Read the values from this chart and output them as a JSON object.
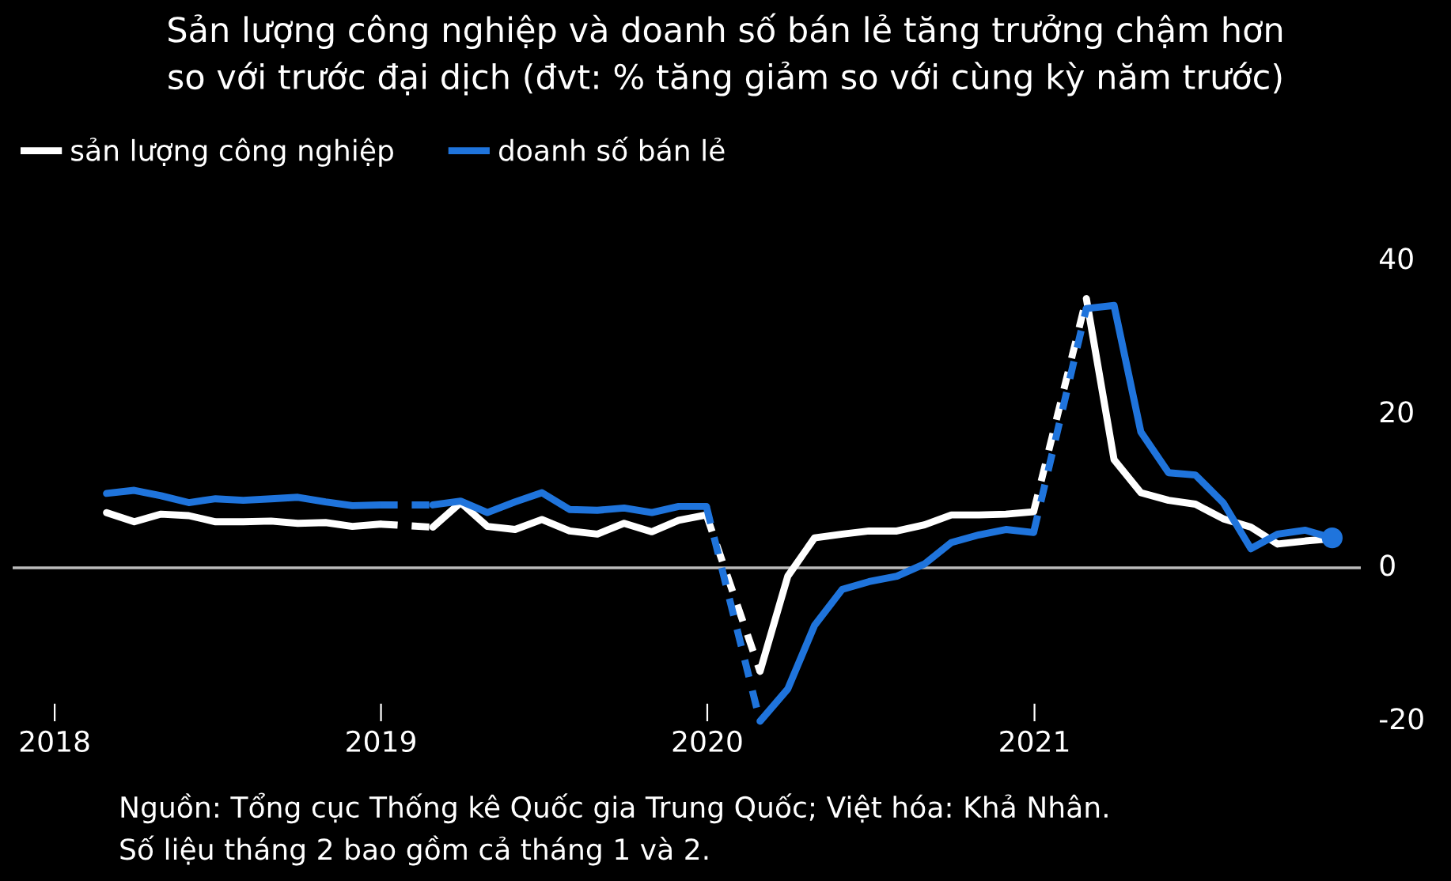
{
  "chart_data": {
    "type": "line",
    "title": "Sản lượng công nghiệp và doanh số bán lẻ tăng trưởng chậm hơn\nso với trước đại dịch (đvt: % tăng giảm so với cùng kỳ năm trước)",
    "x": [
      "2018-02-28",
      "2018-03-31",
      "2018-04-30",
      "2018-05-31",
      "2018-06-30",
      "2018-07-31",
      "2018-08-31",
      "2018-09-30",
      "2018-10-31",
      "2018-11-30",
      "2018-12-31",
      "2019-01-31",
      "2019-02-28",
      "2019-03-31",
      "2019-04-30",
      "2019-05-31",
      "2019-06-30",
      "2019-07-31",
      "2019-08-31",
      "2019-09-30",
      "2019-10-31",
      "2019-11-30",
      "2019-12-31",
      "2020-01-31",
      "2020-02-29",
      "2020-03-31",
      "2020-04-30",
      "2020-05-31",
      "2020-06-30",
      "2020-07-31",
      "2020-08-31",
      "2020-09-30",
      "2020-10-31",
      "2020-11-30",
      "2020-12-31",
      "2021-01-31",
      "2021-02-28",
      "2021-03-31",
      "2021-04-30",
      "2021-05-31",
      "2021-06-30",
      "2021-07-31",
      "2021-08-31",
      "2021-09-30",
      "2021-10-31",
      "2021-11-30"
    ],
    "series": [
      {
        "name": "sản lượng công nghiệp",
        "color": "#ffffff",
        "values": [
          7.2,
          6.0,
          7.0,
          6.8,
          6.0,
          6.0,
          6.1,
          5.8,
          5.9,
          5.4,
          5.7,
          null,
          5.3,
          8.5,
          5.4,
          5.0,
          6.3,
          4.8,
          4.4,
          5.8,
          4.7,
          6.2,
          6.9,
          null,
          -13.5,
          -1.1,
          3.9,
          4.4,
          4.8,
          4.8,
          5.6,
          6.9,
          6.9,
          7.0,
          7.3,
          null,
          35.1,
          14.1,
          9.8,
          8.8,
          8.3,
          6.4,
          5.3,
          3.1,
          3.5,
          3.8
        ]
      },
      {
        "name": "doanh số bán lẻ",
        "color": "#1f74dc",
        "values": [
          9.7,
          10.1,
          9.4,
          8.5,
          9.0,
          8.8,
          9.0,
          9.2,
          8.6,
          8.1,
          8.2,
          null,
          8.2,
          8.7,
          7.2,
          8.6,
          9.8,
          7.6,
          7.5,
          7.8,
          7.2,
          8.0,
          8.0,
          null,
          -20,
          -15.8,
          -7.5,
          -2.8,
          -1.8,
          -1.1,
          0.5,
          3.3,
          4.3,
          5.0,
          4.6,
          null,
          33.8,
          34.2,
          17.7,
          12.4,
          12.1,
          8.5,
          2.5,
          4.4,
          4.9,
          3.9
        ]
      },
      {
        "type": "scatter",
        "color": "#1f74dc",
        "x": [
          "2021-11-30"
        ],
        "values": [
          3.9
        ]
      }
    ],
    "xlim": [
      "2017-11-15",
      "2022-01-01"
    ],
    "xticks": [
      {
        "value": "2018-01-01",
        "label": "2018"
      },
      {
        "value": "2019-01-01",
        "label": "2019"
      },
      {
        "value": "2020-01-01",
        "label": "2020"
      },
      {
        "value": "2021-01-01",
        "label": "2021"
      }
    ],
    "ylim": [
      -20,
      40
    ],
    "yticks": [
      -20,
      0,
      20,
      40
    ],
    "ref_lines": [
      {
        "axis": "y",
        "value": 0,
        "color": "#bbbbbb"
      }
    ],
    "grid": false,
    "legend": "top left",
    "annotations": [
      "Nguồn: Tổng cục Thống kê Quốc gia Trung Quốc; Việt hóa: Khả Nhân.\nSố liệu tháng 2 bao gồm cả tháng 1 và 2."
    ]
  }
}
